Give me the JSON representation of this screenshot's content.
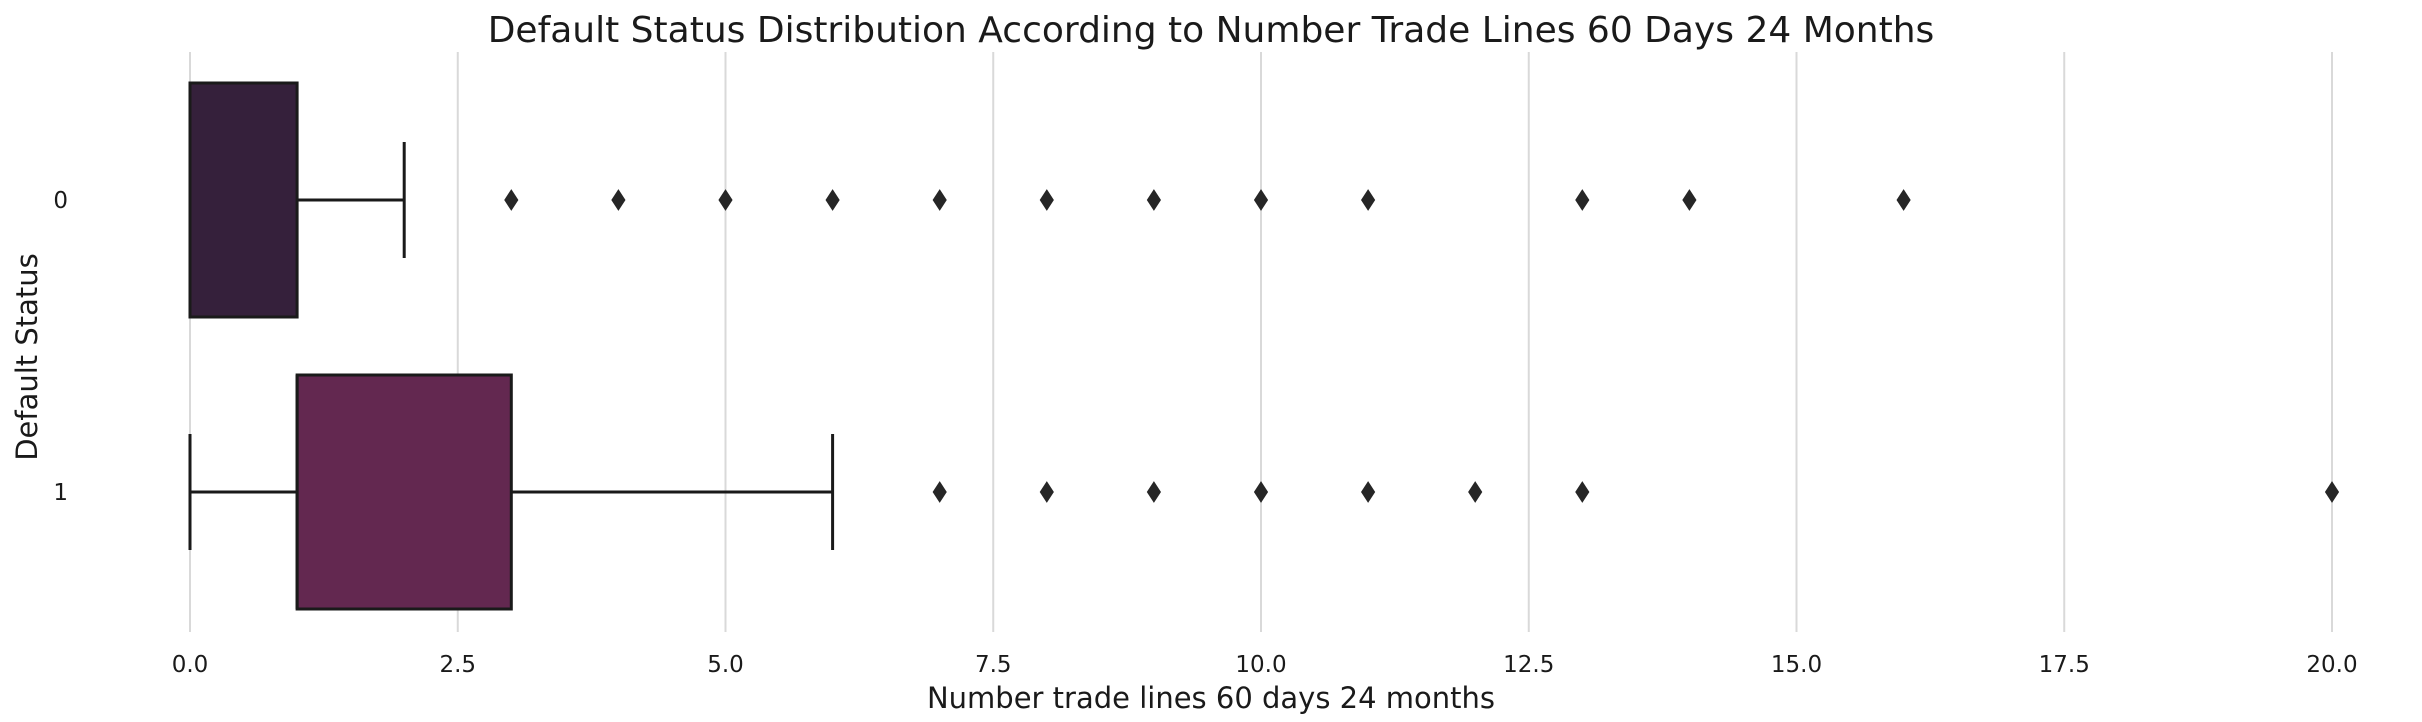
{
  "chart_data": {
    "type": "boxplot",
    "orientation": "horizontal",
    "title": "Default Status Distribution According to Number Trade Lines 60 Days 24 Months",
    "xlabel": "Number trade lines 60 days 24 months",
    "ylabel": "Default Status",
    "xlim": [
      0,
      20
    ],
    "xticks": [
      "0.0",
      "2.5",
      "5.0",
      "7.5",
      "10.0",
      "12.5",
      "15.0",
      "17.5",
      "20.0"
    ],
    "xtick_values": [
      0,
      2.5,
      5,
      7.5,
      10,
      12.5,
      15,
      17.5,
      20
    ],
    "grid": "vertical",
    "categories": [
      "0",
      "1"
    ],
    "boxes": [
      {
        "category": "0",
        "color": "#35203b",
        "whisker_low": 0,
        "q1": 0,
        "median": 0,
        "q3": 1,
        "whisker_high": 2,
        "outliers": [
          3,
          4,
          5,
          6,
          7,
          8,
          9,
          10,
          11,
          13,
          14,
          16
        ]
      },
      {
        "category": "1",
        "color": "#632850",
        "whisker_low": 0,
        "q1": 1,
        "median": 1,
        "q3": 3,
        "whisker_high": 6,
        "outliers": [
          7,
          8,
          9,
          10,
          11,
          12,
          13,
          20
        ]
      }
    ]
  }
}
